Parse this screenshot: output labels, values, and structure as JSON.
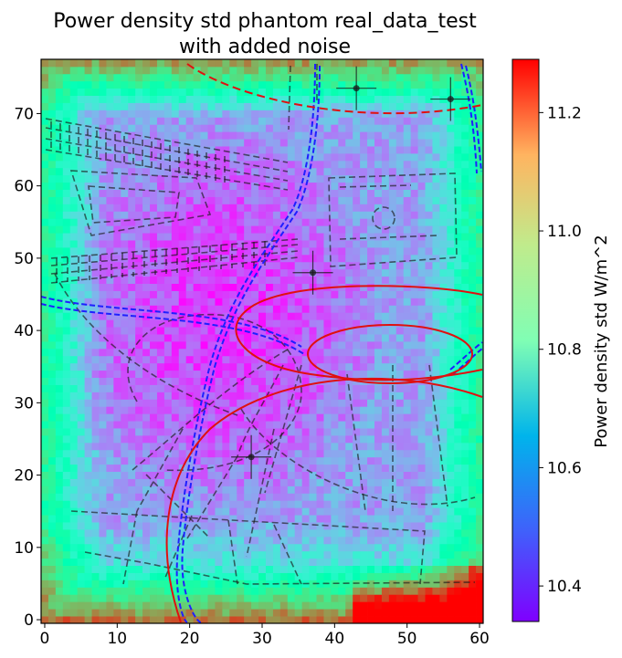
{
  "chart_data": {
    "type": "heatmap",
    "title": "Power density std phantom real_data_test\nwith added noise",
    "xlabel": "",
    "ylabel": "",
    "xlim": [
      -0.5,
      60.5
    ],
    "ylim": [
      -0.5,
      77.5
    ],
    "x_ticks": [
      0,
      10,
      20,
      30,
      40,
      50,
      60
    ],
    "y_ticks": [
      0,
      10,
      20,
      30,
      40,
      50,
      60,
      70
    ],
    "grid_shape": [
      78,
      61
    ],
    "colormap": "rainbow",
    "colorbar": {
      "label": "Power density std W/m^2",
      "min": 10.34,
      "max": 11.29,
      "ticks": [
        10.4,
        10.6,
        10.8,
        11.0,
        11.2
      ],
      "tick_labels": [
        "10.4",
        "10.6",
        "10.8",
        "11.0",
        "11.2"
      ]
    },
    "markers": [
      {
        "x": 43,
        "y": 73.5
      },
      {
        "x": 56,
        "y": 72
      },
      {
        "x": 37,
        "y": 48
      },
      {
        "x": 28.5,
        "y": 22.5
      }
    ],
    "overlay_colors": {
      "outline": "#1a1a1a",
      "trajectory": "#1f1fff",
      "ellipse": "#e01010",
      "dashed_arc": "#e01010"
    }
  }
}
